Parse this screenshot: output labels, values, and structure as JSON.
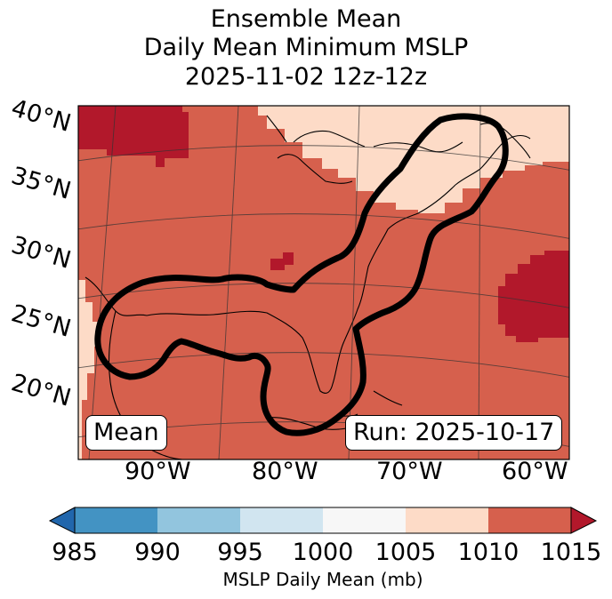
{
  "title": {
    "line1": "Ensemble Mean",
    "line2": "Daily Mean Minimum MSLP",
    "line3": "2025-11-02 12z-12z"
  },
  "map": {
    "lat_labels": [
      "40°N",
      "35°N",
      "30°N",
      "25°N",
      "20°N"
    ],
    "lon_labels": [
      "90°W",
      "80°W",
      "70°W",
      "60°W"
    ],
    "mean_label": "Mean",
    "run_label": "Run: 2025-10-17"
  },
  "colorbar": {
    "ticks": [
      "985",
      "990",
      "995",
      "1000",
      "1005",
      "1010",
      "1015"
    ],
    "label": "MSLP Daily Mean (mb)",
    "colors": [
      "#4393c3",
      "#92c5de",
      "#d1e5f0",
      "#f7f7f7",
      "#fddbc7",
      "#d6604d"
    ],
    "under_color": "#2166ac",
    "over_color": "#b2182b"
  },
  "chart_data": {
    "type": "heatmap",
    "title": "Ensemble Mean Daily Mean Minimum MSLP 2025-11-02 12z-12z",
    "variable": "MSLP Daily Mean (mb)",
    "levels": [
      985,
      990,
      995,
      1000,
      1005,
      1010,
      1015
    ],
    "extend": "both",
    "lon_range": [
      -97,
      -57
    ],
    "lat_range": [
      15,
      41
    ],
    "regions": [
      {
        "name": "background",
        "range_mb": [
          1010,
          1015
        ]
      },
      {
        "name": "northwest-high",
        "range_mb": [
          1015,
          1020
        ]
      },
      {
        "name": "atlantic-high",
        "range_mb": [
          1015,
          1020
        ]
      },
      {
        "name": "small-high-patch",
        "range_mb": [
          1015,
          1020
        ]
      },
      {
        "name": "northeast-low",
        "range_mb": [
          1005,
          1010
        ]
      },
      {
        "name": "southwest-edge",
        "range_mb": [
          1005,
          1010
        ]
      }
    ],
    "contour": "thick black outline around Gulf of Mexico, Florida and US east coast"
  }
}
